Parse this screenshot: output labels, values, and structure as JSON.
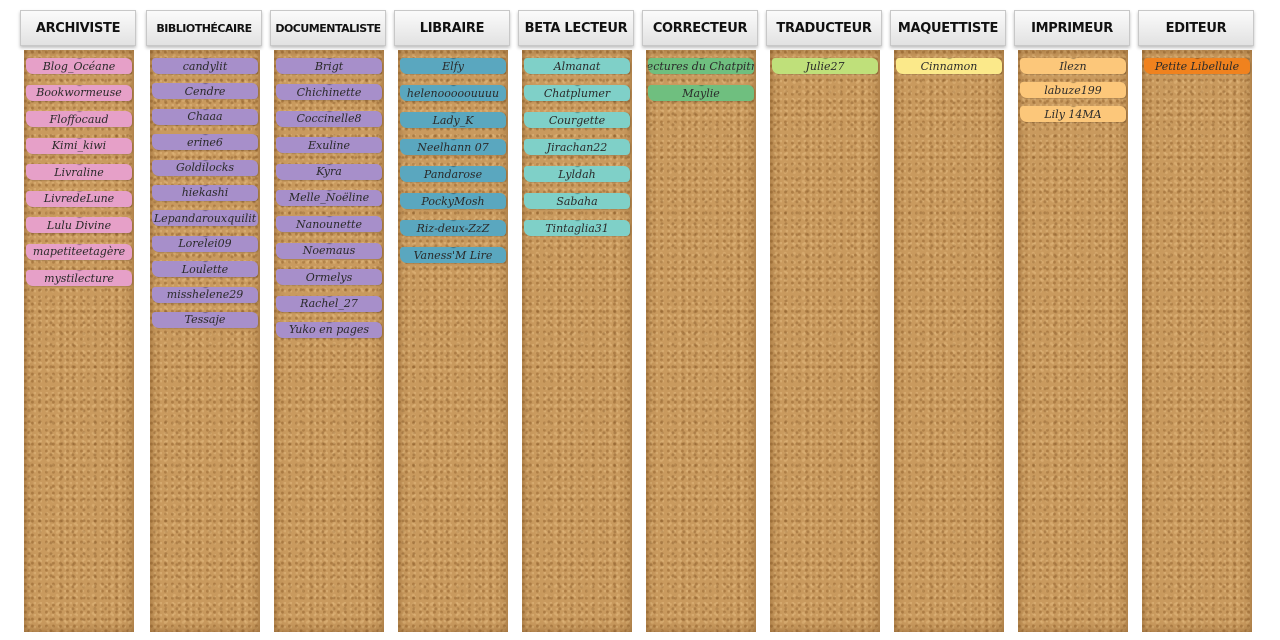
{
  "columns": [
    {
      "title": "ARCHIVISTE",
      "color": "#e6a0c8",
      "items": [
        "Blog_Océane",
        "Bookwormeuse",
        "Floffocaud",
        "Kimi_kiwi",
        "Livraline",
        "LivredeLune",
        "Lulu Divine",
        "mapetiteetagère",
        "mystilecture"
      ]
    },
    {
      "title": "BIBLIOTHÉCAIRE",
      "color": "#a78fca",
      "items": [
        "candylit",
        "Cendre",
        "Chaaa",
        "erine6",
        "Goldilocks",
        "hiekashi",
        "Lepandarouxquilit",
        "Lorelei09",
        "Loulette",
        "misshelene29",
        "Tessaje"
      ]
    },
    {
      "title": "DOCUMENTALISTE",
      "color": "#a78fca",
      "items": [
        "Brigt",
        "Chichinette",
        "Coccinelle8",
        "Exuline",
        "Kyra",
        "Melle_Noëline",
        "Nanounette",
        "Noemaus",
        "Ormelys",
        "Rachel_27",
        "Yuko en pages"
      ]
    },
    {
      "title": "LIBRAIRE",
      "color": "#5aa7bf",
      "items": [
        "Elfy",
        "helenooooouuuu",
        "Lady_K",
        "Neelhann 07",
        "Pandarose",
        "PockyMosh",
        "Riz-deux-ZzZ",
        "Vaness'M Lire"
      ]
    },
    {
      "title": "BETA LECTEUR",
      "color": "#7fd0c8",
      "items": [
        "Almanat",
        "Chatplumer",
        "Courgette",
        "Jirachan22",
        "Lyldah",
        "Sabaha",
        "Tintaglia31"
      ]
    },
    {
      "title": "CORRECTEUR",
      "color": "#6fbf7f",
      "items": [
        "Lectures du Chatpitre",
        "Maylie"
      ]
    },
    {
      "title": "TRADUCTEUR",
      "color": "#bfe07a",
      "items": [
        "Julie27"
      ]
    },
    {
      "title": "MAQUETTISTE",
      "color": "#fbe98a",
      "items": [
        "Cinnamon"
      ]
    },
    {
      "title": "IMPRIMEUR",
      "color": "#fcc77a",
      "items": [
        "Ilezn",
        "labuze199",
        "Lily 14MA"
      ]
    },
    {
      "title": "EDITEUR",
      "color": "#f0821e",
      "items": [
        "Petite Libellule"
      ]
    }
  ]
}
